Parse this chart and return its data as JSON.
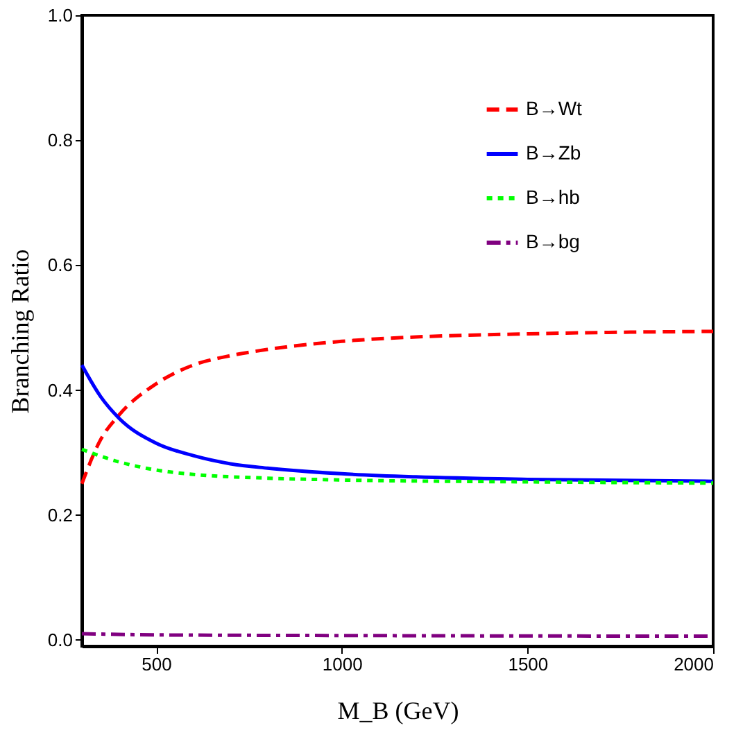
{
  "chart_data": {
    "type": "line",
    "xlabel": "M_B (GeV)",
    "ylabel": "Branching Ratio",
    "xlim": [
      300,
      2000
    ],
    "xticks": [
      500,
      1000,
      1500,
      2000
    ],
    "ylim": [
      -0.01,
      1.0
    ],
    "yticks": [
      {
        "value": 0,
        "label": "0.0"
      },
      {
        "value": 0.2,
        "label": "0.2"
      },
      {
        "value": 0.4,
        "label": "0.4"
      },
      {
        "value": 0.6,
        "label": "0.6"
      },
      {
        "value": 0.8,
        "label": "0.8"
      },
      {
        "value": 1.0,
        "label": "1.0"
      }
    ],
    "grid": false,
    "legend": "top right",
    "series": [
      {
        "name": "B→Wt",
        "color": "#ff0000",
        "line_style": "dashed",
        "x": [
          300,
          350,
          400,
          500,
          600,
          700,
          800,
          1000,
          1200,
          1500,
          2000
        ],
        "values": [
          0.25,
          0.32,
          0.36,
          0.41,
          0.44,
          0.455,
          0.465,
          0.478,
          0.485,
          0.49,
          0.494
        ]
      },
      {
        "name": "B→Zb",
        "color": "#0000ff",
        "line_style": "solid",
        "x": [
          300,
          350,
          400,
          500,
          600,
          700,
          800,
          1000,
          1200,
          1500,
          2000
        ],
        "values": [
          0.44,
          0.39,
          0.355,
          0.315,
          0.295,
          0.282,
          0.275,
          0.266,
          0.261,
          0.257,
          0.254
        ]
      },
      {
        "name": "B→hb",
        "color": "#00ff00",
        "line_style": "dotted",
        "x": [
          300,
          400,
          500,
          600,
          800,
          1000,
          1500,
          2000
        ],
        "values": [
          0.305,
          0.285,
          0.272,
          0.265,
          0.259,
          0.256,
          0.253,
          0.251
        ]
      },
      {
        "name": "B→bg",
        "color": "#800080",
        "line_style": "dashdot",
        "x": [
          300,
          500,
          1000,
          2000
        ],
        "values": [
          0.01,
          0.008,
          0.007,
          0.006
        ]
      }
    ]
  }
}
